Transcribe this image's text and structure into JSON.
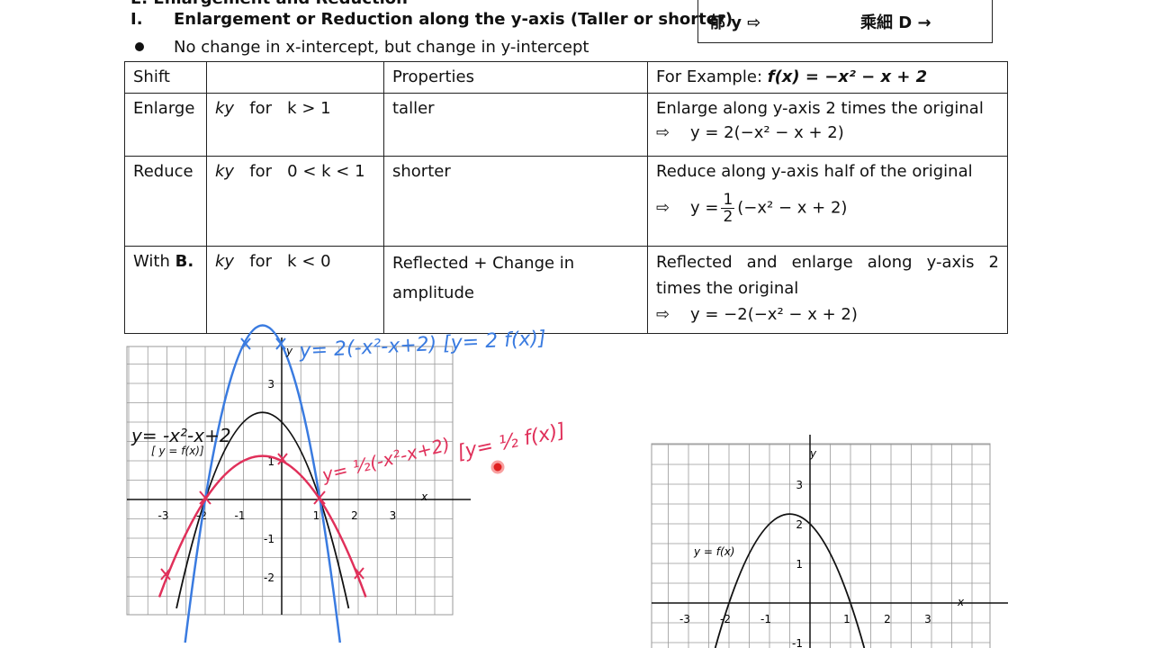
{
  "header": {
    "section": "E.      Enlargement and Reduction",
    "item_number": "I.",
    "title": "Enlargement or Reduction along the y-axis (Taller or shorter)",
    "bullet": "No change in x-intercept, but change in y-intercept",
    "box_left": "郁 y ⇨",
    "box_right": "乘細 D →"
  },
  "table": {
    "columns": [
      "Shift",
      "",
      "Properties",
      "For Example:"
    ],
    "example_function": "f(x) = −x² − x + 2",
    "rows": [
      {
        "shift": "Enlarge",
        "rule": [
          "ky",
          "for",
          "k > 1"
        ],
        "property": "taller",
        "example": "Enlarge along y-axis 2 times the original",
        "arrow": "⇨",
        "formula": "y = 2(−x² − x + 2)"
      },
      {
        "shift": "Reduce",
        "rule": [
          "ky",
          "for",
          "0 < k < 1"
        ],
        "property": "shorter",
        "example": "Reduce along y-axis half of the original",
        "arrow": "⇨",
        "formula_lhs": "y =",
        "numerator": "1",
        "denominator": "2",
        "formula_rhs": "(−x² − x + 2)"
      },
      {
        "shift_prefix": "With",
        "shift_bold": "B.",
        "rule": [
          "ky",
          "for",
          "k < 0"
        ],
        "property": "Reflected + Change in amplitude",
        "example": "Reflected and enlarge along y-axis 2 times the original",
        "arrow": "⇨",
        "formula": "y = −2(−x² − x + 2)"
      }
    ]
  },
  "graph_1": {
    "x_label": "x",
    "y_label": "y",
    "xticks": [
      -3,
      -2,
      -1,
      1,
      2,
      3
    ],
    "yticks": [
      3,
      1,
      -1,
      -2
    ],
    "notes": {
      "blue": "y= 2(-x²-x+2) [y= 2 f(x)]",
      "black": "y= -x²-x+2",
      "black_bracket": "[ y = f(x)]",
      "red": "y= ½(-x²-x+2)",
      "red_bracket": "[y= ½ f(x)]"
    }
  },
  "graph_2": {
    "x_label": "x",
    "y_label": "y",
    "xticks": [
      -3,
      -2,
      -1,
      1,
      2,
      3
    ],
    "yticks": [
      3,
      2,
      1,
      -1
    ],
    "curve_label": "y = f(x)"
  }
}
